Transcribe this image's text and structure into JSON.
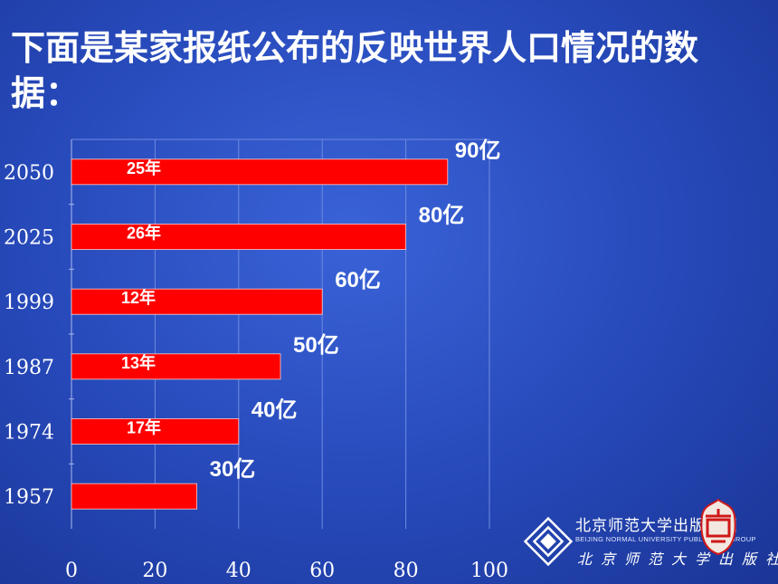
{
  "title": "下面是某家报纸公布的反映世界人口情况的数据：",
  "chart_data": {
    "type": "bar",
    "orientation": "horizontal",
    "title": "下面是某家报纸公布的反映世界人口情况的数据：",
    "categories": [
      "2050",
      "2025",
      "1999",
      "1987",
      "1974",
      "1957"
    ],
    "values": [
      90,
      80,
      60,
      50,
      40,
      30
    ],
    "value_labels": [
      "90亿",
      "80亿",
      "60亿",
      "50亿",
      "40亿",
      "30亿"
    ],
    "interval_labels": [
      "25年",
      "26年",
      "12年",
      "13年",
      "17年",
      ""
    ],
    "x_ticks": [
      "0",
      "20",
      "40",
      "60",
      "80",
      "100"
    ],
    "xlim": [
      0,
      100
    ],
    "grid": true,
    "bar_color": "#ff0000"
  },
  "logo": {
    "name_cn": "北京师范大学出版集团",
    "name_en": "BEIJING NORMAL UNIVERSITY PUBLISHING GROUP",
    "press_cn": "北京师范大学出版社"
  }
}
